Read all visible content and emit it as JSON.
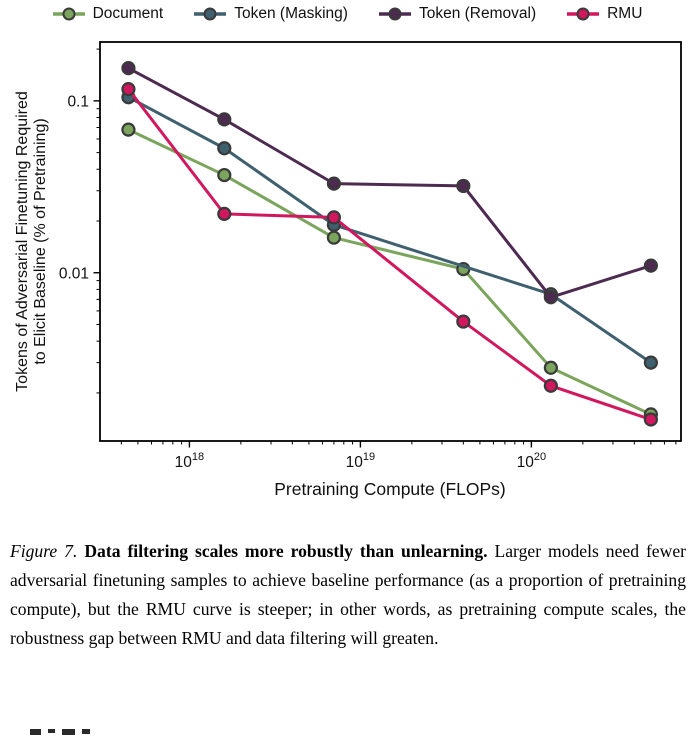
{
  "chart_data": {
    "type": "line",
    "title": "",
    "xlabel": "Pretraining Compute (FLOPs)",
    "ylabel_line1": "Tokens of Adversarial Finetuning Required",
    "ylabel_line2": "to Elicit Baseline (% of Pretraining)",
    "x_scale": "log",
    "y_scale": "log",
    "xlim": [
      3e+17,
      7.5e+20
    ],
    "ylim": [
      0.00105,
      0.22
    ],
    "grid": false,
    "legend_position": "top",
    "marker_outline_color": "#3a3a3a",
    "x_ticks": [
      {
        "value": 1e+18,
        "base": "10",
        "exp": "18"
      },
      {
        "value": 1e+19,
        "base": "10",
        "exp": "19"
      },
      {
        "value": 1e+20,
        "base": "10",
        "exp": "20"
      }
    ],
    "y_ticks": [
      {
        "value": 0.1,
        "label": "0.1"
      },
      {
        "value": 0.01,
        "label": "0.01"
      }
    ],
    "series": [
      {
        "name": "Document",
        "color": "#7ba55d",
        "x": [
          4.4e+17,
          1.6e+18,
          7e+18,
          4e+19,
          1.3e+20,
          5e+20
        ],
        "values": [
          0.068,
          0.037,
          0.016,
          0.0105,
          0.0028,
          0.0015
        ]
      },
      {
        "name": "Token (Masking)",
        "color": "#3f616f",
        "x": [
          4.4e+17,
          1.6e+18,
          7e+18,
          1.3e+20,
          5e+20
        ],
        "values": [
          0.105,
          0.053,
          0.019,
          0.0075,
          0.003
        ]
      },
      {
        "name": "Token (Removal)",
        "color": "#4d2b50",
        "x": [
          4.4e+17,
          1.6e+18,
          7e+18,
          4e+19,
          1.3e+20,
          5e+20
        ],
        "values": [
          0.155,
          0.078,
          0.033,
          0.032,
          0.0072,
          0.011
        ]
      },
      {
        "name": "RMU",
        "color": "#d1175e",
        "x": [
          4.4e+17,
          1.6e+18,
          7e+18,
          4e+19,
          1.3e+20,
          5e+20
        ],
        "values": [
          0.117,
          0.022,
          0.021,
          0.0052,
          0.0022,
          0.0014
        ]
      }
    ]
  },
  "caption": {
    "figure_label": "Figure 7.",
    "bold_text": "Data filtering scales more robustly than unlearning.",
    "body_text": "Larger models need fewer adversarial finetuning samples to achieve baseline performance (as a proportion of pretraining compute), but the RMU curve is steeper; in other words, as pretraining compute scales, the robustness gap between RMU and data filtering will greaten."
  }
}
